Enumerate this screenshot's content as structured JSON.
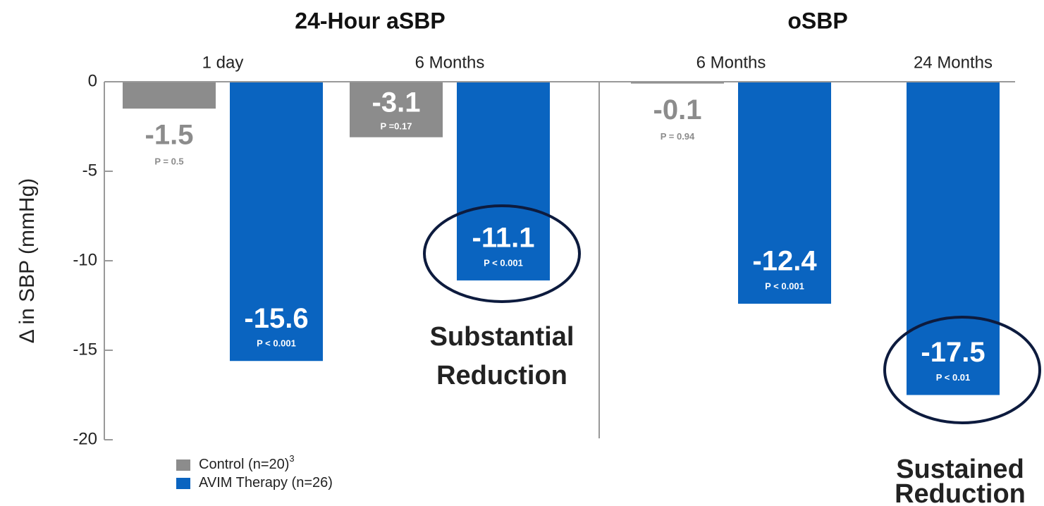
{
  "chart_data": {
    "type": "bar",
    "groups": [
      {
        "title": "24-Hour aSBP"
      },
      {
        "title": "oSBP"
      }
    ],
    "categories": [
      "1 day",
      "6 Months",
      "6 Months",
      "24 Months"
    ],
    "y_label": "Δ in SBP (mmHg)",
    "series": [
      {
        "name": "Control (n=20)",
        "footnote": "3",
        "color": "#8c8c8c",
        "values": [
          -1.5,
          -3.1,
          -0.1,
          null
        ],
        "p_labels": [
          "P = 0.5",
          "P =0.17",
          "P = 0.94",
          null
        ]
      },
      {
        "name": "AVIM Therapy (n=26)",
        "color": "#0a64c0",
        "values": [
          -15.6,
          -11.1,
          -12.4,
          -17.5
        ],
        "p_labels": [
          "P < 0.001",
          "P < 0.001",
          "P < 0.001",
          "P < 0.01"
        ]
      }
    ],
    "ylim": [
      -20,
      0
    ],
    "yticks": [
      0,
      -5,
      -10,
      -15,
      -20
    ],
    "annotations": [
      {
        "lines": [
          "Substantial",
          "Reduction"
        ]
      },
      {
        "lines": [
          "Sustained",
          "Reduction"
        ]
      }
    ]
  }
}
